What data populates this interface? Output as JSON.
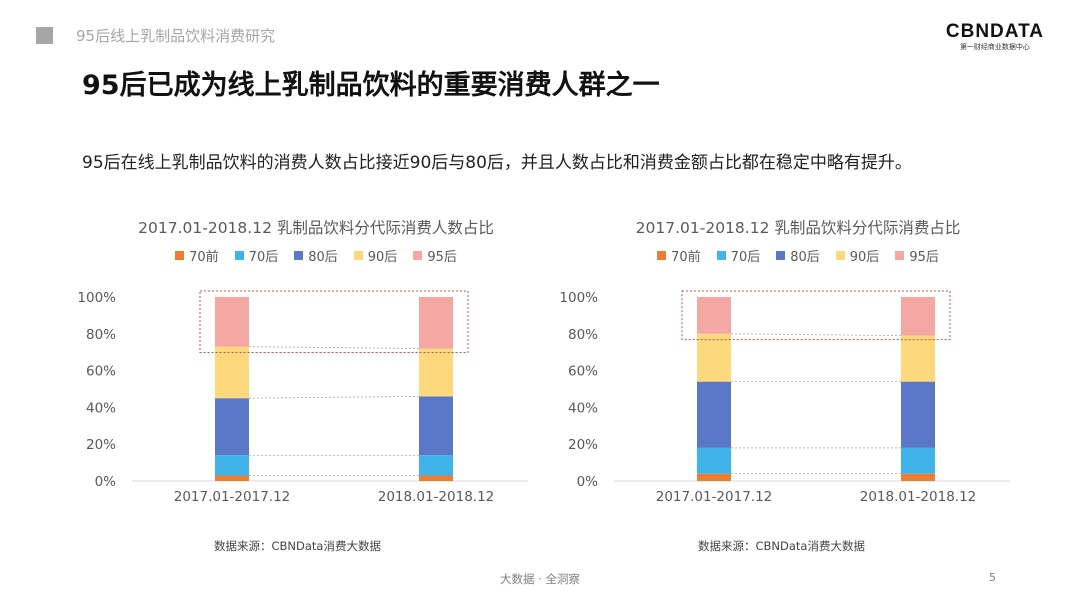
{
  "header": {
    "section_title": "95后线上乳制品饮料消费研究"
  },
  "logo": {
    "main": "CBNDATA",
    "sub": "第一财经商业数据中心"
  },
  "page": {
    "title": "95后已成为线上乳制品饮料的重要消费人群之一",
    "subtitle": "95后在线上乳制品饮料的消费人数占比接近90后与80后，并且人数占比和消费金额占比都在稳定中略有提升。",
    "footer": "大数据 · 全洞察",
    "page_number": "5"
  },
  "colors": {
    "70前": "#ed7d31",
    "70后": "#3fb3ea",
    "80后": "#5b78c8",
    "90后": "#fdd87c",
    "95后": "#f4a7a3"
  },
  "chart_data": [
    {
      "type": "bar",
      "stacked": true,
      "title": "2017.01-2018.12 乳制品饮料分代际消费人数占比",
      "categories": [
        "2017.01-2017.12",
        "2018.01-2018.12"
      ],
      "series": [
        {
          "name": "70前",
          "values": [
            3,
            3
          ]
        },
        {
          "name": "70后",
          "values": [
            11,
            11
          ]
        },
        {
          "name": "80后",
          "values": [
            31,
            32
          ]
        },
        {
          "name": "90后",
          "values": [
            28,
            26
          ]
        },
        {
          "name": "95后",
          "values": [
            27,
            28
          ]
        }
      ],
      "y_ticks": [
        "0%",
        "20%",
        "40%",
        "60%",
        "80%",
        "100%"
      ],
      "ylim": [
        0,
        100
      ],
      "legend_position": "top",
      "source": "数据来源：CBNData消费大数据"
    },
    {
      "type": "bar",
      "stacked": true,
      "title": "2017.01-2018.12 乳制品饮料分代际消费占比",
      "categories": [
        "2017.01-2017.12",
        "2018.01-2018.12"
      ],
      "series": [
        {
          "name": "70前",
          "values": [
            4,
            4
          ]
        },
        {
          "name": "70后",
          "values": [
            14,
            14
          ]
        },
        {
          "name": "80后",
          "values": [
            36,
            36
          ]
        },
        {
          "name": "90后",
          "values": [
            26,
            25
          ]
        },
        {
          "name": "95后",
          "values": [
            20,
            21
          ]
        }
      ],
      "y_ticks": [
        "0%",
        "20%",
        "40%",
        "60%",
        "80%",
        "100%"
      ],
      "ylim": [
        0,
        100
      ],
      "legend_position": "top",
      "source": "数据来源：CBNData消费大数据"
    }
  ]
}
